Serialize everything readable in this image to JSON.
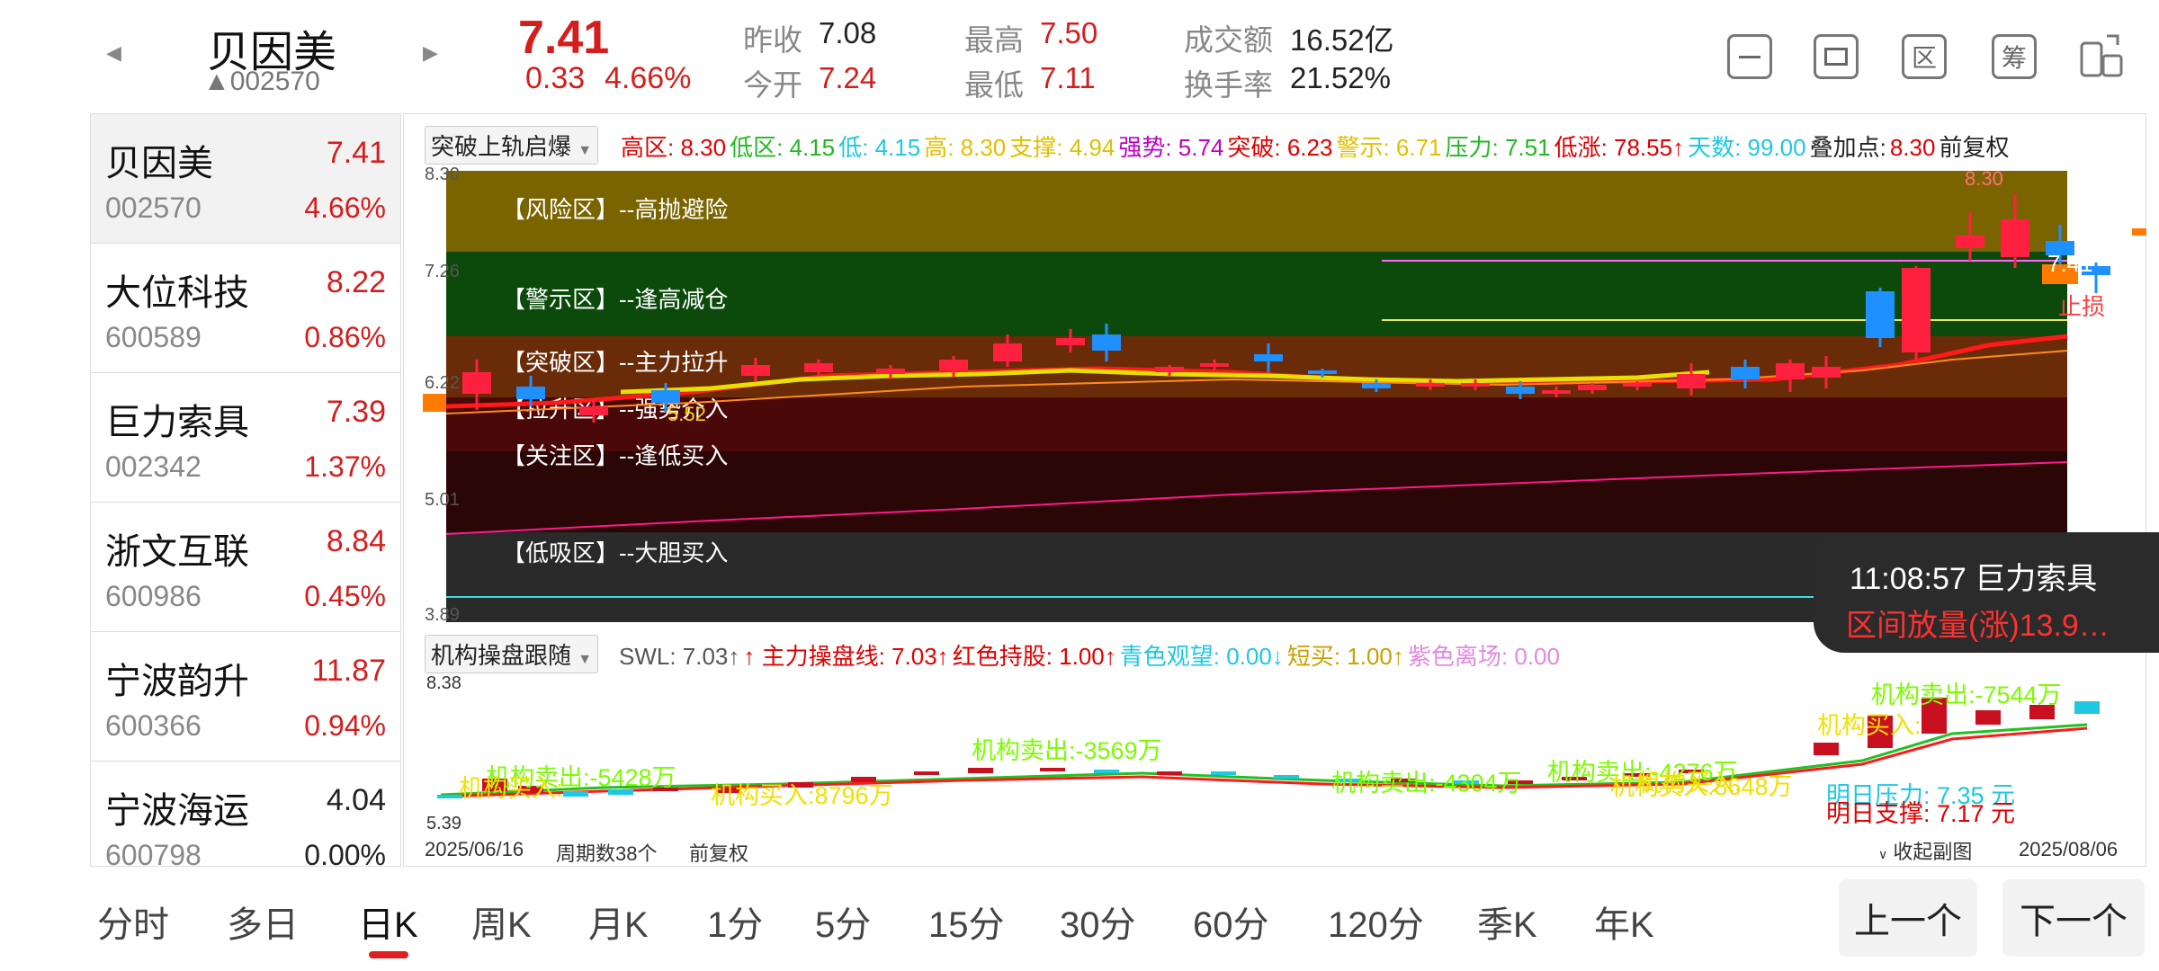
{
  "header": {
    "prev_arrow": "◀",
    "next_arrow": "▶",
    "stock_name": "贝因美",
    "stock_code": "▲002570",
    "price": "7.41",
    "change": "0.33",
    "change_pct": "4.66%",
    "stats": {
      "prev_close_label": "昨收",
      "prev_close": "7.08",
      "open_label": "今开",
      "open": "7.24",
      "high_label": "最高",
      "high": "7.50",
      "low_label": "最低",
      "low": "7.11",
      "amount_label": "成交额",
      "amount": "16.52亿",
      "turnover_label": "换手率",
      "turnover": "21.52%"
    },
    "icons": [
      "minus-square-icon",
      "screen-icon",
      "区",
      "筹",
      "device-switch-icon"
    ],
    "icon_labels": {
      "qu": "区",
      "chou": "筹"
    }
  },
  "sidebar": {
    "items": [
      {
        "name": "贝因美",
        "price": "7.41",
        "code": "002570",
        "pct": "4.66%",
        "color": "#d41e1e"
      },
      {
        "name": "大位科技",
        "price": "8.22",
        "code": "600589",
        "pct": "0.86%",
        "color": "#d41e1e"
      },
      {
        "name": "巨力索具",
        "price": "7.39",
        "code": "002342",
        "pct": "1.37%",
        "color": "#d41e1e"
      },
      {
        "name": "浙文互联",
        "price": "8.84",
        "code": "600986",
        "pct": "0.45%",
        "color": "#d41e1e"
      },
      {
        "name": "宁波韵升",
        "price": "11.87",
        "code": "600366",
        "pct": "0.94%",
        "color": "#d41e1e"
      },
      {
        "name": "宁波海运",
        "price": "4.04",
        "code": "600798",
        "pct": "0.00%",
        "color": "#222222"
      }
    ]
  },
  "main_chart": {
    "indicator_name": "突破上轨启爆",
    "legend": [
      {
        "text": "高区: 8.30",
        "color": "#e00000"
      },
      {
        "text": "低区: 4.15",
        "color": "#22b822"
      },
      {
        "text": "低: 4.15",
        "color": "#1ec8e0"
      },
      {
        "text": "高: 8.30",
        "color": "#e0c000"
      },
      {
        "text": "支撑: 4.94",
        "color": "#e0c000"
      },
      {
        "text": "强势: 5.74",
        "color": "#c000c0"
      },
      {
        "text": "突破: 6.23",
        "color": "#e00000"
      },
      {
        "text": "警示: 6.71",
        "color": "#e0c000"
      },
      {
        "text": "压力: 7.51",
        "color": "#22b822"
      },
      {
        "text": "低涨: 78.55↑",
        "color": "#e00000"
      },
      {
        "text": "天数: 99.00",
        "color": "#1ec8e0"
      },
      {
        "text": "叠加点:",
        "color": "#222"
      },
      {
        "text": "8.30",
        "color": "#e00000"
      },
      {
        "text": "前复权",
        "color": "#222"
      }
    ],
    "y_labels": {
      "top": "8.30",
      "l2": "7.26",
      "l3": "6.22",
      "l4": "5.01",
      "bottom": "3.89"
    },
    "zones": [
      "【风险区】--高抛避险",
      "【警示区】--逢高减仓",
      "【突破区】--主力拉升",
      "【拉升区】--强势介入",
      "【关注区】--逢低买入",
      "【低吸区】--大胆买入"
    ],
    "labels": {
      "last_price": "7.41",
      "stop": "止损",
      "low_mark": "5.52",
      "high_mark": "8.30"
    }
  },
  "sub_chart": {
    "indicator_name": "机构操盘跟随",
    "legend": [
      {
        "text": "SWL: 7.03↑",
        "color": "#555"
      },
      {
        "text": "↑ 主力操盘线: 7.03↑",
        "color": "#e00000"
      },
      {
        "text": "红色持股: 1.00↑",
        "color": "#e00000"
      },
      {
        "text": "青色观望: 0.00↓",
        "color": "#1ec8e0"
      },
      {
        "text": "短买: 1.00↑",
        "color": "#c8a000"
      },
      {
        "text": "紫色离场: 0.00",
        "color": "#e08ae0"
      }
    ],
    "y_top": "8.38",
    "y_bottom": "5.39",
    "annotations": [
      {
        "text": "机构卖出:-5428万",
        "color": "#7cfc00"
      },
      {
        "text": "机构买入:",
        "color": "#f0e000"
      },
      {
        "text": "机构买入:8796万",
        "color": "#f0e000"
      },
      {
        "text": "机构卖出:-3569万",
        "color": "#7cfc00"
      },
      {
        "text": "机构卖出:-4304万",
        "color": "#7cfc00"
      },
      {
        "text": "机构卖出:-4276万",
        "color": "#7cfc00"
      },
      {
        "text": "机构买入:",
        "color": "#f0e000"
      },
      {
        "text": "机构买入:8648万",
        "color": "#f0e000"
      },
      {
        "text": "机构卖出:-7544万",
        "color": "#7cfc00"
      },
      {
        "text": "机构买入:",
        "color": "#f0e000"
      },
      {
        "text": "明日压力: 7.35 元",
        "color": "#1ec8e0"
      },
      {
        "text": "明日支撑: 7.17 元",
        "color": "#e00000"
      }
    ]
  },
  "axis": {
    "start_date": "2025/06/16",
    "period_count": "周期数38个",
    "adjust": "前复权",
    "collapse": "收起副图",
    "end_date": "2025/08/06"
  },
  "tooltip": {
    "time_name": "11:08:57  巨力索具",
    "text": "区间放量(涨)13.9…"
  },
  "tabs": [
    "分时",
    "多日",
    "日K",
    "周K",
    "月K",
    "1分",
    "5分",
    "15分",
    "30分",
    "60分",
    "120分",
    "季K",
    "年K"
  ],
  "active_tab": "日K",
  "nav": {
    "prev": "上一个",
    "next": "下一个"
  }
}
